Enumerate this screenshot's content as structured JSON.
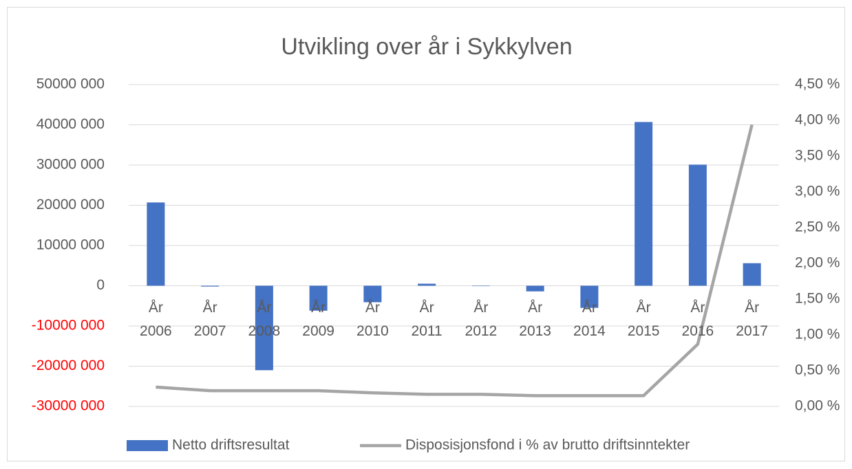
{
  "chart_data": {
    "type": "bar_line",
    "title": "Utvikling over år i Sykkylven",
    "categories": [
      "År 2006",
      "År 2007",
      "År 2008",
      "År 2009",
      "År 2010",
      "År 2011",
      "År 2012",
      "År 2013",
      "År 2014",
      "År 2015",
      "År 2016",
      "År 2017"
    ],
    "series": [
      {
        "name": "Netto driftsresultat",
        "type": "bar",
        "color": "#4472c4",
        "values": [
          20700000,
          -200000,
          -21000000,
          -6200000,
          -4100000,
          500000,
          -100000,
          -1400000,
          -5500000,
          40700000,
          30100000,
          5600000
        ]
      },
      {
        "name": "Disposisjonsfond i % av brutto driftsinntekter",
        "type": "line",
        "axis": "y2",
        "color": "#a5a5a5",
        "values": [
          0.27,
          0.22,
          0.22,
          0.22,
          0.19,
          0.17,
          0.17,
          0.15,
          0.15,
          0.15,
          0.87,
          3.94
        ]
      }
    ],
    "ylim": [
      -30000000,
      50000000
    ],
    "yticks": [
      {
        "value": -30000000,
        "label": "-30000 000"
      },
      {
        "value": -20000000,
        "label": "-20000 000"
      },
      {
        "value": -10000000,
        "label": "-10000 000"
      },
      0,
      {
        "value": 10000000,
        "label": "10000 000"
      },
      {
        "value": 20000000,
        "label": "20000 000"
      },
      {
        "value": 30000000,
        "label": "30000 000"
      },
      {
        "value": 40000000,
        "label": "40000 000"
      },
      {
        "value": 50000000,
        "label": "50000 000"
      }
    ],
    "y2lim": [
      0,
      4.5
    ],
    "y2ticks": [
      {
        "value": 0,
        "label": "0,00 %"
      },
      {
        "value": 0.5,
        "label": "0,50 %"
      },
      {
        "value": 1,
        "label": "1,00 %"
      },
      {
        "value": 1.5,
        "label": "1,50 %"
      },
      {
        "value": 2,
        "label": "2,00 %"
      },
      {
        "value": 2.5,
        "label": "2,50 %"
      },
      {
        "value": 3,
        "label": "3,00 %"
      },
      {
        "value": 3.5,
        "label": "3,50 %"
      },
      {
        "value": 4,
        "label": "4,00 %"
      },
      {
        "value": 4.5,
        "label": "4,50 %"
      }
    ],
    "negative_tick_color": "#ff0000",
    "grid": true,
    "legend": "bottom"
  }
}
